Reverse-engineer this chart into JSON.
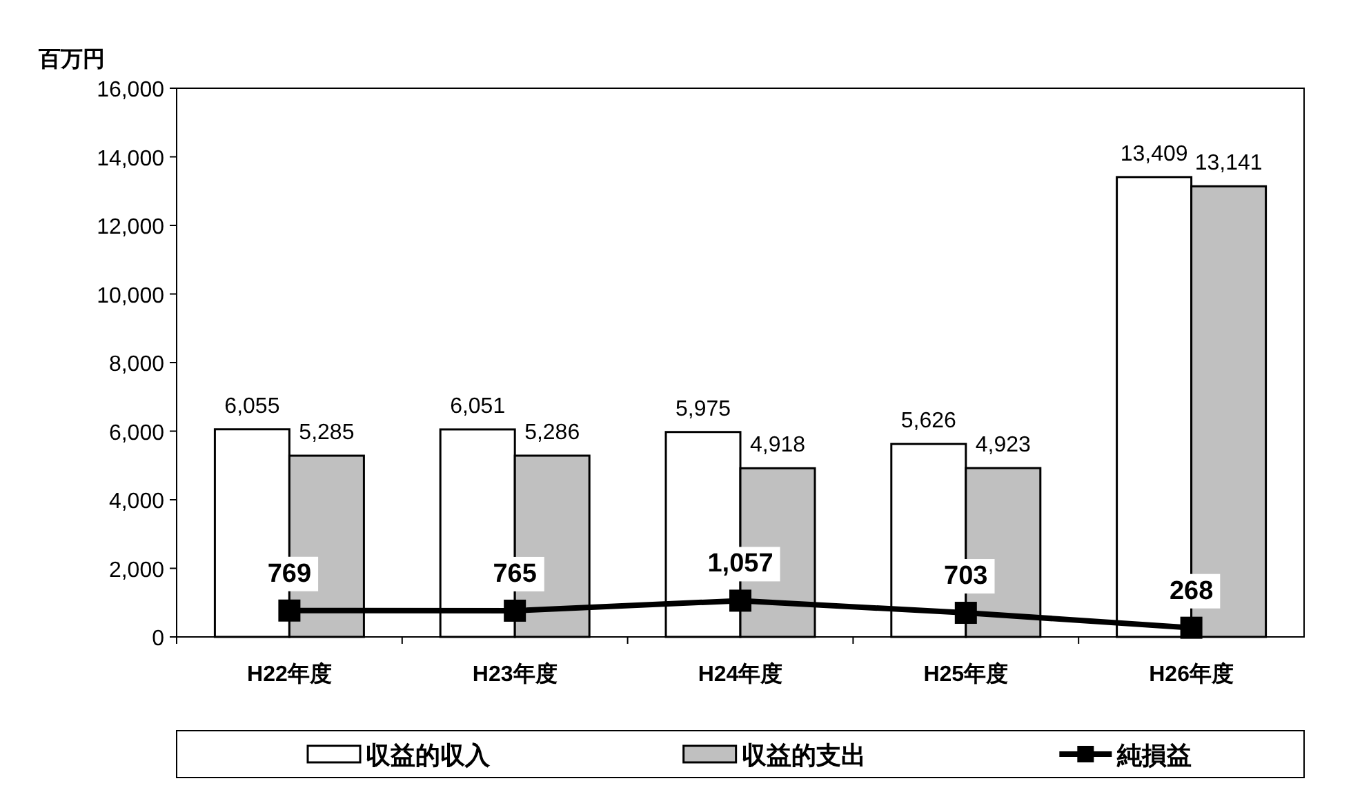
{
  "chart_data": {
    "type": "bar",
    "ylabel": "百万円",
    "categories": [
      "H22年度",
      "H23年度",
      "H24年度",
      "H25年度",
      "H26年度"
    ],
    "series": [
      {
        "name": "収益的収入",
        "color": "#ffffff",
        "values": [
          6055,
          6051,
          5975,
          5626,
          13409
        ],
        "value_labels": [
          "6,055",
          "6,051",
          "5,975",
          "5,626",
          "13,409"
        ]
      },
      {
        "name": "収益的支出",
        "color": "#c0c0c0",
        "values": [
          5285,
          5286,
          4918,
          4923,
          13141
        ],
        "value_labels": [
          "5,285",
          "5,286",
          "4,918",
          "4,923",
          "13,141"
        ]
      },
      {
        "name": "純損益",
        "type": "line",
        "color": "#000000",
        "marker": "square",
        "values": [
          769,
          765,
          1057,
          703,
          268
        ],
        "value_labels": [
          "769",
          "765",
          "1,057",
          "703",
          "268"
        ]
      }
    ],
    "ylim": [
      0,
      16000
    ],
    "yticks": [
      {
        "value": 0,
        "label": "0"
      },
      {
        "value": 2000,
        "label": "2,000"
      },
      {
        "value": 4000,
        "label": "4,000"
      },
      {
        "value": 6000,
        "label": "6,000"
      },
      {
        "value": 8000,
        "label": "8,000"
      },
      {
        "value": 10000,
        "label": "10,000"
      },
      {
        "value": 12000,
        "label": "12,000"
      },
      {
        "value": 14000,
        "label": "14,000"
      },
      {
        "value": 16000,
        "label": "16,000"
      }
    ],
    "legend": "bottom"
  }
}
